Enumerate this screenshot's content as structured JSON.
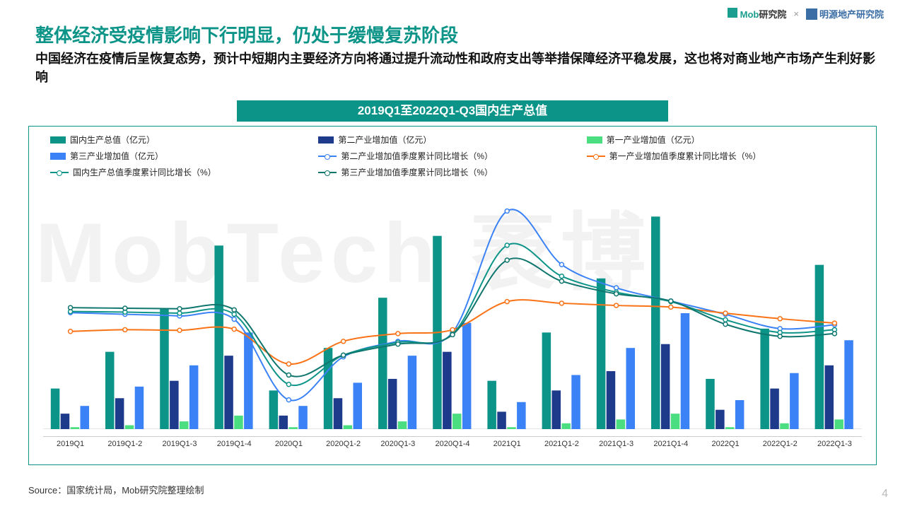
{
  "logos": {
    "mob": "Mob研究院",
    "x": "×",
    "mingyuan": "明源地产研究院"
  },
  "title": "整体经济受疫情影响下行明显，仍处于缓慢复苏阶段",
  "subtitle": "中国经济在疫情后呈恢复态势，预计中短期内主要经济方向将通过提升流动性和政府支出等举措保障经济平稳发展，这也将对商业地产市场产生利好影响",
  "chart": {
    "title": "2019Q1至2022Q1-Q3国内生产总值",
    "type": "bar+line",
    "categories": [
      "2019Q1",
      "2019Q1-2",
      "2019Q1-3",
      "2019Q1-4",
      "2020Q1",
      "2020Q1-2",
      "2020Q1-3",
      "2020Q1-4",
      "2021Q1",
      "2021Q1-2",
      "2021Q1-3",
      "2021Q1-4",
      "2022Q1",
      "2022Q1-2",
      "2022Q1-3"
    ],
    "bar_series": [
      {
        "name": "国内生产总值（亿元）",
        "color": "#0d9488",
        "values": [
          21,
          40,
          62,
          95,
          20,
          42,
          68,
          100,
          25,
          50,
          78,
          110,
          26,
          52,
          85
        ]
      },
      {
        "name": "第二产业增加值（亿元）",
        "color": "#1e3a8a",
        "values": [
          8,
          16,
          25,
          38,
          7,
          16,
          26,
          40,
          9,
          20,
          30,
          44,
          10,
          21,
          33
        ]
      },
      {
        "name": "第一产业增加值（亿元）",
        "color": "#4ade80",
        "values": [
          1,
          2,
          4,
          7,
          1,
          2,
          4,
          8,
          1,
          3,
          5,
          8,
          1,
          3,
          5
        ]
      },
      {
        "name": "第三产业增加值（亿元）",
        "color": "#3b82f6",
        "values": [
          12,
          22,
          33,
          50,
          12,
          24,
          38,
          55,
          14,
          28,
          42,
          60,
          15,
          29,
          46
        ]
      }
    ],
    "line_series": [
      {
        "name": "第二产业增加值季度累计同比增长（%）",
        "color": "#3b82f6",
        "values": [
          6.1,
          5.8,
          5.5,
          4.9,
          -9.7,
          -1.9,
          0.9,
          2.5,
          24.5,
          14.8,
          10.6,
          8.2,
          5.8,
          3.2,
          3.9
        ]
      },
      {
        "name": "第一产业增加值季度累计同比增长（%）",
        "color": "#f97316",
        "values": [
          2.7,
          3.0,
          2.9,
          3.1,
          -3.2,
          0.9,
          2.3,
          3.0,
          8.1,
          7.8,
          7.4,
          7.1,
          6.0,
          5.0,
          4.2
        ]
      },
      {
        "name": "国内生产总值季度累计同比增长（%）",
        "color": "#0d9488",
        "values": [
          6.3,
          6.2,
          6.0,
          5.8,
          -6.9,
          -1.6,
          0.7,
          2.2,
          18.3,
          12.7,
          9.8,
          8.1,
          4.8,
          2.5,
          3.0
        ]
      },
      {
        "name": "第三产业增加值季度累计同比增长（%）",
        "color": "#0f766e",
        "values": [
          7.0,
          6.9,
          6.8,
          6.6,
          -5.2,
          -1.6,
          0.4,
          2.1,
          15.6,
          11.8,
          9.5,
          8.2,
          4.0,
          1.8,
          2.3
        ]
      }
    ],
    "y_left_max": 120,
    "y_right_min": -15,
    "y_right_max": 27,
    "background_color": "#ffffff",
    "border_color": "#0d9488",
    "bar_group_width": 0.72,
    "marker": "circle-open",
    "line_width": 2
  },
  "legend": [
    {
      "type": "bar",
      "key": "国内生产总值（亿元）",
      "color": "#0d9488"
    },
    {
      "type": "bar",
      "key": "第二产业增加值（亿元）",
      "color": "#1e3a8a"
    },
    {
      "type": "bar",
      "key": "第一产业增加值（亿元）",
      "color": "#4ade80"
    },
    {
      "type": "bar",
      "key": "第三产业增加值（亿元）",
      "color": "#3b82f6"
    },
    {
      "type": "line",
      "key": "第二产业增加值季度累计同比增长（%）",
      "color": "#3b82f6"
    },
    {
      "type": "line",
      "key": "第一产业增加值季度累计同比增长（%）",
      "color": "#f97316"
    },
    {
      "type": "line",
      "key": "国内生产总值季度累计同比增长（%）",
      "color": "#0d9488"
    },
    {
      "type": "line",
      "key": "第三产业增加值季度累计同比增长（%）",
      "color": "#0f766e"
    }
  ],
  "source": "Source：国家统计局，Mob研究院整理绘制",
  "page_num": "4",
  "watermark": "MobTech 袤博"
}
